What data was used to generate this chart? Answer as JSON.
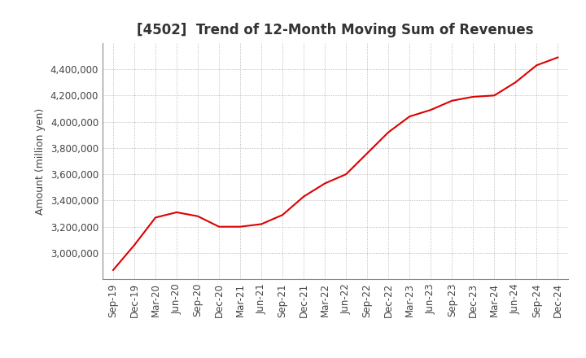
{
  "title": "[4502]  Trend of 12-Month Moving Sum of Revenues",
  "ylabel": "Amount (million yen)",
  "line_color": "#dd0000",
  "background_color": "#ffffff",
  "plot_bg_color": "#ffffff",
  "grid_color": "#aaaaaa",
  "title_fontsize": 12,
  "axis_fontsize": 9,
  "tick_fontsize": 8.5,
  "labels": [
    "Sep-19",
    "Dec-19",
    "Mar-20",
    "Jun-20",
    "Sep-20",
    "Dec-20",
    "Mar-21",
    "Jun-21",
    "Sep-21",
    "Dec-21",
    "Mar-22",
    "Jun-22",
    "Sep-22",
    "Dec-22",
    "Mar-23",
    "Jun-23",
    "Sep-23",
    "Dec-23",
    "Mar-24",
    "Jun-24",
    "Sep-24",
    "Dec-24"
  ],
  "values": [
    2870000,
    3060000,
    3270000,
    3310000,
    3280000,
    3200000,
    3200000,
    3220000,
    3290000,
    3430000,
    3530000,
    3600000,
    3760000,
    3920000,
    4040000,
    4090000,
    4160000,
    4190000,
    4200000,
    4300000,
    4430000,
    4490000
  ],
  "ylim_min": 2800000,
  "ylim_max": 4600000,
  "yticks": [
    3000000,
    3200000,
    3400000,
    3600000,
    3800000,
    4000000,
    4200000,
    4400000
  ]
}
